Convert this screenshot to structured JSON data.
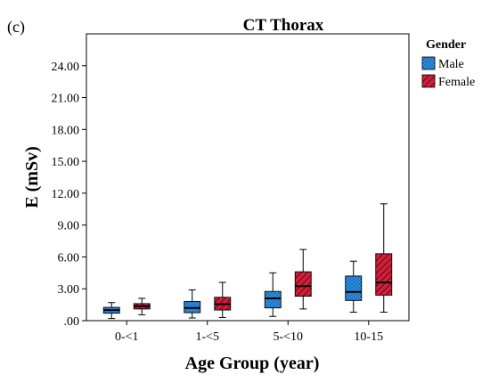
{
  "panel_label": "(c)",
  "chart_data": {
    "type": "box",
    "title": "CT Thorax",
    "xlabel": "Age Group (year)",
    "ylabel": "E (mSv)",
    "ylim": [
      0,
      27
    ],
    "yticks": [
      ".00",
      "3.00",
      "6.00",
      "9.00",
      "12.00",
      "15.00",
      "18.00",
      "21.00",
      "24.00"
    ],
    "ytick_values": [
      0,
      3,
      6,
      9,
      12,
      15,
      18,
      21,
      24
    ],
    "categories": [
      "0-<1",
      "1-<5",
      "5-<10",
      "10-15"
    ],
    "legend": {
      "title": "Gender",
      "placement": "top-right"
    },
    "series": [
      {
        "name": "Male",
        "color": "#1f7fcf",
        "pattern": "dots",
        "boxes": [
          {
            "min": 0.2,
            "q1": 0.7,
            "median": 1.0,
            "q3": 1.25,
            "max": 1.7
          },
          {
            "min": 0.25,
            "q1": 0.75,
            "median": 1.2,
            "q3": 1.8,
            "max": 2.9
          },
          {
            "min": 0.4,
            "q1": 1.2,
            "median": 2.1,
            "q3": 2.75,
            "max": 4.5
          },
          {
            "min": 0.8,
            "q1": 1.9,
            "median": 2.7,
            "q3": 4.2,
            "max": 5.6
          }
        ]
      },
      {
        "name": "Female",
        "color": "#c8102e",
        "pattern": "hatch",
        "boxes": [
          {
            "min": 0.55,
            "q1": 1.1,
            "median": 1.35,
            "q3": 1.6,
            "max": 2.1
          },
          {
            "min": 0.3,
            "q1": 1.0,
            "median": 1.55,
            "q3": 2.2,
            "max": 3.6
          },
          {
            "min": 1.1,
            "q1": 2.3,
            "median": 3.25,
            "q3": 4.6,
            "max": 6.7
          },
          {
            "min": 0.8,
            "q1": 2.4,
            "median": 3.6,
            "q3": 6.3,
            "max": 11.0
          }
        ]
      }
    ]
  }
}
